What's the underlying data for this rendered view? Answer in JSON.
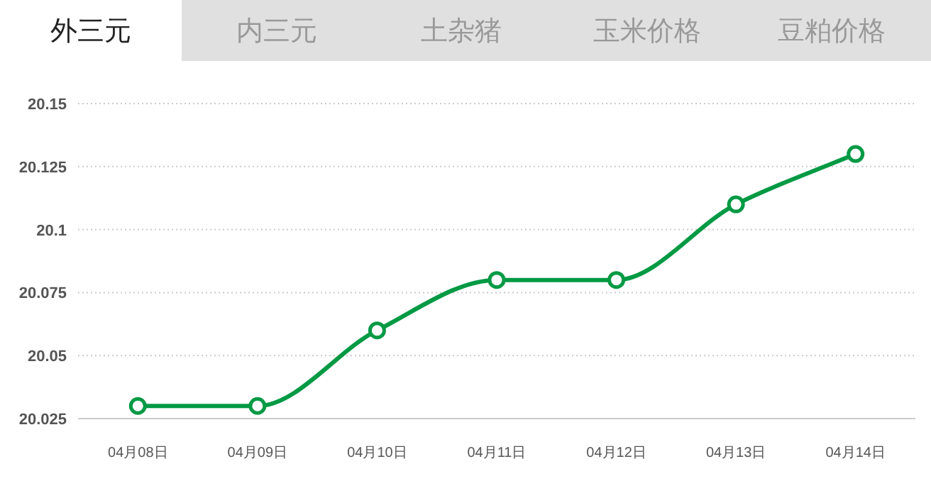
{
  "chart_data": {
    "type": "line",
    "title": "外三元",
    "annotations": [
      "内三元",
      "土杂猪",
      "玉米价格",
      "豆粕价格"
    ],
    "categories": [
      "04月08日",
      "04月09日",
      "04月10日",
      "04月11日",
      "04月12日",
      "04月13日",
      "04月14日"
    ],
    "series": [
      {
        "color": "#009944",
        "values": [
          20.03,
          20.03,
          20.06,
          20.08,
          20.08,
          20.11,
          20.13
        ]
      }
    ],
    "ylim": [
      20.025,
      20.15
    ],
    "yticks": [
      20.025,
      20.05,
      20.075,
      20.1,
      20.125,
      20.15
    ],
    "grid": "y",
    "marker": "circle",
    "line_style": "solid"
  }
}
